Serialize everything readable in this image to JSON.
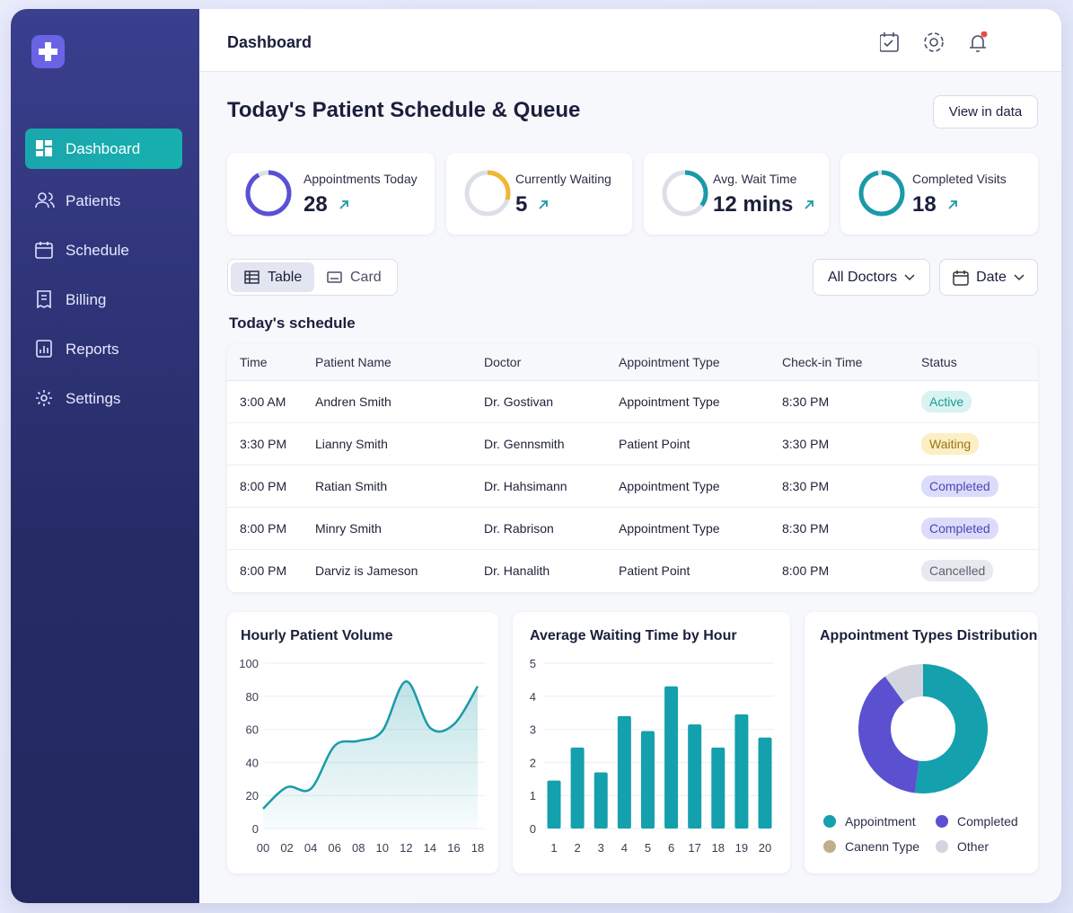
{
  "sidebar": {
    "nav": [
      "Dashboard",
      "Patients",
      "Schedule",
      "Billing",
      "Reports",
      "Settings"
    ]
  },
  "header": {
    "title": "Dashboard"
  },
  "page": {
    "title": "Today's Patient Schedule & Queue",
    "button": "View in data"
  },
  "stats": [
    {
      "label": "Appointments Today",
      "value": 28
    },
    {
      "label": "Currently Waiting",
      "value": 5
    },
    {
      "label": "Avg. Wait Time",
      "value": "12 mins"
    },
    {
      "label": "Completed Visits",
      "value": 18
    }
  ],
  "view_toggle": [
    "Table",
    "Card"
  ],
  "filters": [
    "All Doctors",
    "Date"
  ],
  "table": {
    "title": "Today's schedule",
    "columns": [
      "Time",
      "Patient Name",
      "Doctor",
      "Appointment Type",
      "Check-in Time",
      "Status"
    ],
    "rows": [
      [
        "3:00 AM",
        "Andren Smith",
        "Dr. Gostivan",
        "Appointment Type",
        "8:30 PM",
        "Active"
      ],
      [
        "3:30 PM",
        "Lianny Smith",
        "Dr. Gennsmith",
        "Patient Point",
        "3:30 PM",
        "Waiting"
      ],
      [
        "8:00 PM",
        "Ratian Smith",
        "Dr. Hahsimann",
        "Appointment Type",
        "8:30 PM",
        "Completed"
      ],
      [
        "8:00 PM",
        "Minry Smith",
        "Dr. Rabrison",
        "Appointment Type",
        "8:30 PM",
        "Completed"
      ],
      [
        "8:00 PM",
        "Darviz is Jameson",
        "Dr. Hanalith",
        "Patient Point",
        "8:00 PM",
        "Cancelled"
      ]
    ]
  },
  "chart_data": [
    {
      "type": "line",
      "title": "Hourly Patient Volume",
      "categories": [
        "00",
        "02",
        "04",
        "06",
        "08",
        "10",
        "12",
        "14",
        "16",
        "18"
      ],
      "values": [
        12,
        25,
        24,
        50,
        53,
        59,
        89,
        61,
        63,
        86
      ],
      "color": "#1a9aa8",
      "ylim": [
        0,
        100
      ],
      "yticks": [
        0,
        20,
        40,
        60,
        80,
        100
      ],
      "grid": true
    },
    {
      "type": "bar",
      "title": "Average Waiting Time by Hour",
      "categories": [
        "1",
        "2",
        "3",
        "4",
        "5",
        "6",
        "17",
        "18",
        "19",
        "20"
      ],
      "values": [
        1.45,
        2.45,
        1.7,
        3.4,
        2.95,
        4.3,
        3.15,
        2.45,
        3.45,
        2.75
      ],
      "color": "#14a0ad",
      "ylim": [
        0,
        5
      ],
      "yticks": [
        0,
        1,
        2,
        3,
        4,
        5
      ],
      "grid": true
    },
    {
      "type": "donut",
      "title": "Appointment Types Distribution",
      "categories": [
        "Appointment",
        "Completed",
        "Canenn Type",
        "Other"
      ],
      "values": [
        52,
        38,
        0,
        10
      ],
      "colors": [
        "#14a0ad",
        "#5b50d0",
        "#bfae8c",
        "#d3d5de"
      ]
    }
  ]
}
